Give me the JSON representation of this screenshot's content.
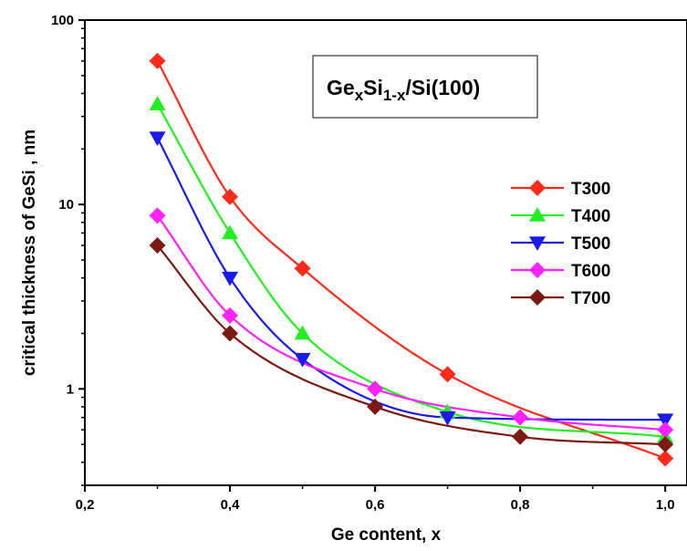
{
  "chart_data": {
    "type": "scatter",
    "title": "",
    "xlabel": "Ge content, x",
    "ylabel": "critical thickness of GeSi , nm",
    "xlim": [
      0.2,
      1.03
    ],
    "ylim": [
      0.3,
      100
    ],
    "yscale": "log",
    "x_ticks": [
      0.2,
      0.4,
      0.6,
      0.8,
      1.0
    ],
    "x_tick_labels": [
      "0,2",
      "0,4",
      "0,6",
      "0,8",
      "1,0"
    ],
    "y_ticks": [
      1,
      10,
      100
    ],
    "y_tick_labels": [
      "1",
      "10",
      "100"
    ],
    "grid": false,
    "legend_position": "right",
    "annotation": {
      "base1": "Ge",
      "sub1": "x",
      "base2": "Si",
      "sub2": "1-x",
      "tail": "/Si(100)"
    },
    "series": [
      {
        "name": "T300",
        "marker": "diamond",
        "color": "#ff2a1a",
        "x": [
          0.3,
          0.4,
          0.5,
          0.7,
          1.0
        ],
        "y": [
          60,
          11,
          4.5,
          1.2,
          0.42
        ]
      },
      {
        "name": "T400",
        "marker": "triangle-up",
        "color": "#22ee22",
        "x": [
          0.3,
          0.4,
          0.5,
          0.7,
          1.0
        ],
        "y": [
          35,
          7,
          2.0,
          0.75,
          0.55
        ]
      },
      {
        "name": "T500",
        "marker": "triangle-down",
        "color": "#1a1aee",
        "x": [
          0.3,
          0.4,
          0.5,
          0.7,
          1.0
        ],
        "y": [
          23,
          4,
          1.45,
          0.7,
          0.68
        ]
      },
      {
        "name": "T600",
        "marker": "diamond",
        "color": "#ff22ff",
        "x": [
          0.3,
          0.4,
          0.6,
          0.8,
          1.0
        ],
        "y": [
          8.7,
          2.5,
          1.0,
          0.7,
          0.6
        ]
      },
      {
        "name": "T700",
        "marker": "diamond",
        "color": "#7a1a12",
        "x": [
          0.3,
          0.4,
          0.6,
          0.8,
          1.0
        ],
        "y": [
          6.0,
          2.0,
          0.8,
          0.55,
          0.5
        ]
      }
    ]
  }
}
